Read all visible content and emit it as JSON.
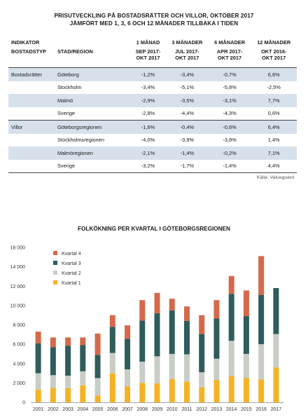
{
  "table": {
    "title_line1": "PRISUTVECKLING PÅ BOSTADSRÄTTER OCH VILLOR, OKTOBER 2017",
    "title_line2": "JÄMFÖRT MED 1, 3, 6 OCH 12 MÅNADER TILLBAKA I TIDEN",
    "header_row1": [
      "INDIKATOR",
      "",
      "1 MÅNAD",
      "3 MÅNADER",
      "6 MÅNADER",
      "12 MÅNADER"
    ],
    "header_row2": {
      "col1": "BOSTADSTYP",
      "col2": "STAD/REGION",
      "periods": [
        [
          "SEP 2017-",
          "OKT 2017"
        ],
        [
          "JUL 2017-",
          "OKT 2017"
        ],
        [
          "APR 2017-",
          "OKT 2017"
        ],
        [
          "OKT 2016-",
          "OKT 2017"
        ]
      ]
    },
    "rows": [
      {
        "type": "Bostadsrätter",
        "region": "Göteborg",
        "values": [
          "-1,2%",
          "-3,4%",
          "-0,7%",
          "6,6%"
        ]
      },
      {
        "type": "",
        "region": "Stockholm",
        "values": [
          "-3,4%",
          "-5,1%",
          "-5,8%",
          "-2,5%"
        ]
      },
      {
        "type": "",
        "region": "Malmö",
        "values": [
          "-2,9%",
          "-3,5%",
          "-3,1%",
          "7,7%"
        ]
      },
      {
        "type": "",
        "region": "Sverige",
        "values": [
          "-2,8%",
          "-4,4%",
          "-4,3%",
          "0,6%"
        ]
      },
      {
        "type": "Villor",
        "region": "Göteborgsregionen",
        "values": [
          "-1,6%",
          "-0,4%",
          "-0,6%",
          "6,4%"
        ]
      },
      {
        "type": "",
        "region": "Stockholmsregionen",
        "values": [
          "-4,0%",
          "-3,9%",
          "-3,8%",
          "1,4%"
        ]
      },
      {
        "type": "",
        "region": "Malmöregionen",
        "values": [
          "-2,1%",
          "-1,4%",
          "-0,2%",
          "7,1%"
        ]
      },
      {
        "type": "",
        "region": "Sverige",
        "values": [
          "-3,2%",
          "-1,7%",
          "-1,4%",
          "4,4%"
        ]
      }
    ],
    "source": "Källa: Valueguard"
  },
  "chart_data": {
    "type": "bar",
    "stacked": true,
    "title": "FOLKÖKNING PER KVARTAL I GÖTEBORGSREGIONEN",
    "categories": [
      "2001",
      "2002",
      "2003",
      "2004",
      "2005",
      "2006",
      "2007",
      "2008",
      "2009",
      "2010",
      "2011",
      "2012",
      "2013",
      "2014",
      "2015",
      "2016",
      "2017"
    ],
    "series": [
      {
        "name": "Kvartal 1",
        "color": "#f5b324",
        "values": [
          1300,
          1500,
          1450,
          1750,
          700,
          3000,
          1650,
          2000,
          1950,
          2400,
          2150,
          1550,
          2300,
          2700,
          2500,
          2350,
          3600
        ]
      },
      {
        "name": "Kvartal 2",
        "color": "#c8cdc6",
        "values": [
          1700,
          1300,
          1300,
          1450,
          1800,
          2100,
          1750,
          2200,
          2800,
          2600,
          2800,
          1550,
          2200,
          3650,
          2500,
          3650,
          3450
        ]
      },
      {
        "name": "Kvartal 3",
        "color": "#2e5d5c",
        "values": [
          3100,
          2900,
          3100,
          2700,
          2400,
          2700,
          3150,
          4250,
          4450,
          4500,
          3450,
          3950,
          4150,
          4850,
          3900,
          5100,
          4750
        ]
      },
      {
        "name": "Kvartal 4",
        "color": "#d5694a",
        "values": [
          1200,
          1000,
          850,
          800,
          2200,
          1200,
          1400,
          2100,
          2100,
          1200,
          1500,
          1950,
          1900,
          1850,
          2650,
          4000,
          0
        ]
      }
    ],
    "ylim": [
      0,
      16000
    ],
    "yticks": [
      "0",
      "2 000",
      "4 000",
      "6 000",
      "8 000",
      "10 000",
      "12 000",
      "14 000",
      "16 000"
    ],
    "ytick_values": [
      0,
      2000,
      4000,
      6000,
      8000,
      10000,
      12000,
      14000,
      16000
    ],
    "grid": false,
    "legend": "top-left inside"
  }
}
